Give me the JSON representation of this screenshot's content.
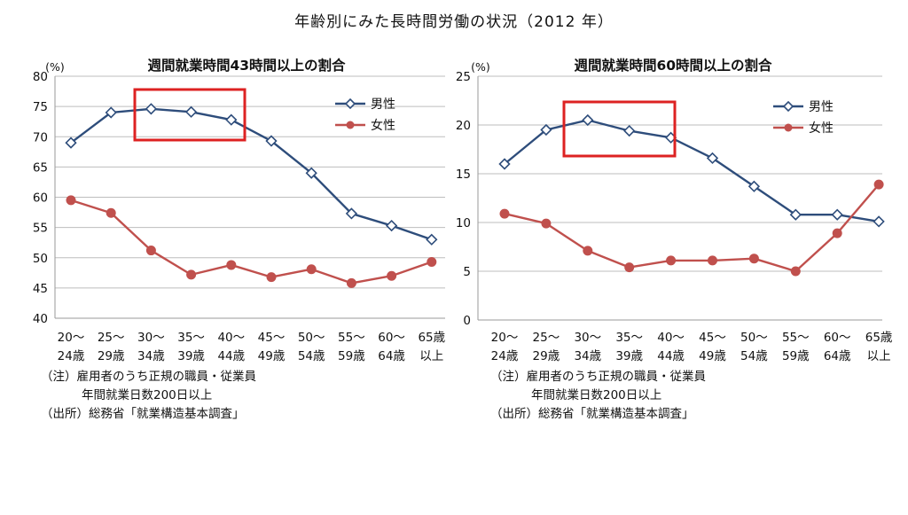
{
  "page": {
    "title": "年齢別にみた長時間労働の状況（2012 年）"
  },
  "chart_data": [
    {
      "type": "line",
      "title": "週間就業時間43時間以上の割合",
      "ylabel": "(%)",
      "ylim": [
        40,
        80
      ],
      "yticks": [
        40,
        45,
        50,
        55,
        60,
        65,
        70,
        75,
        80
      ],
      "grid": true,
      "legend": "top-right",
      "categories": [
        [
          "20～",
          "24歳"
        ],
        [
          "25～",
          "29歳"
        ],
        [
          "30～",
          "34歳"
        ],
        [
          "35～",
          "39歳"
        ],
        [
          "40～",
          "44歳"
        ],
        [
          "45～",
          "49歳"
        ],
        [
          "50～",
          "54歳"
        ],
        [
          "55～",
          "59歳"
        ],
        [
          "60～",
          "64歳"
        ],
        [
          "65歳",
          "以上"
        ]
      ],
      "series": [
        {
          "name": "男性",
          "color": "#2e4d7b",
          "marker": "diamond",
          "values": [
            69.0,
            74.0,
            74.6,
            74.1,
            72.8,
            69.3,
            64.0,
            57.3,
            55.3,
            53.0
          ]
        },
        {
          "name": "女性",
          "color": "#c0504d",
          "marker": "circle",
          "values": [
            59.5,
            57.4,
            51.2,
            47.2,
            48.8,
            46.8,
            48.1,
            45.8,
            47.0,
            49.3
          ]
        }
      ],
      "highlight": {
        "from_index": 2,
        "to_index": 4,
        "color": "#dd2222"
      },
      "notes": [
        "（注）雇用者のうち正規の職員・従業員",
        "年間就業日数200日以上",
        "（出所）総務省「就業構造基本調査」"
      ]
    },
    {
      "type": "line",
      "title": "週間就業時間60時間以上の割合",
      "ylabel": "(%)",
      "ylim": [
        0,
        25
      ],
      "yticks": [
        0,
        5,
        10,
        15,
        20,
        25
      ],
      "grid": true,
      "legend": "top-right",
      "categories": [
        [
          "20～",
          "24歳"
        ],
        [
          "25～",
          "29歳"
        ],
        [
          "30～",
          "34歳"
        ],
        [
          "35～",
          "39歳"
        ],
        [
          "40～",
          "44歳"
        ],
        [
          "45～",
          "49歳"
        ],
        [
          "50～",
          "54歳"
        ],
        [
          "55～",
          "59歳"
        ],
        [
          "60～",
          "64歳"
        ],
        [
          "65歳",
          "以上"
        ]
      ],
      "series": [
        {
          "name": "男性",
          "color": "#2e4d7b",
          "marker": "diamond",
          "values": [
            16.0,
            19.5,
            20.5,
            19.4,
            18.7,
            16.6,
            13.7,
            10.8,
            10.8,
            10.1
          ]
        },
        {
          "name": "女性",
          "color": "#c0504d",
          "marker": "circle",
          "values": [
            10.9,
            9.9,
            7.1,
            5.4,
            6.1,
            6.1,
            6.3,
            5.0,
            8.9,
            13.9
          ]
        }
      ],
      "highlight": {
        "from_index": 2,
        "to_index": 4,
        "color": "#dd2222"
      },
      "notes": [
        "（注）雇用者のうち正規の職員・従業員",
        "年間就業日数200日以上",
        "（出所）総務省「就業構造基本調査」"
      ]
    }
  ]
}
